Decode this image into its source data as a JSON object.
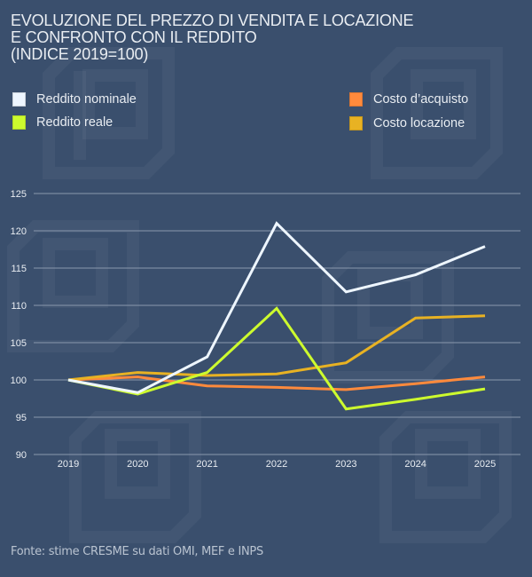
{
  "title_lines": [
    "EVOLUZIONE DEL PREZZO DI VENDITA E LOCAZIONE",
    "E CONFRONTO CON IL REDDITO",
    "(INDICE 2019=100)"
  ],
  "legend": [
    {
      "label": "Reddito nominale",
      "color": "#eef6ff"
    },
    {
      "label": "Reddito reale",
      "color": "#cdfb2e"
    },
    {
      "label": "Costo d’acquisto",
      "color": "#ff8a3c"
    },
    {
      "label": "Costo locazione",
      "color": "#e8b223"
    }
  ],
  "source": "Fonte: stime CRESME su dati OMI, MEF e INPS",
  "chart_data": {
    "type": "line",
    "title": "EVOLUZIONE DEL PREZZO DI VENDITA E LOCAZIONE E CONFRONTO CON IL REDDITO (INDICE 2019=100)",
    "xlabel": "",
    "ylabel": "",
    "x": [
      "2019",
      "2020",
      "2021",
      "2022",
      "2023",
      "2024",
      "2025"
    ],
    "ylim": [
      90,
      125
    ],
    "yticks": [
      "125",
      "120",
      "115",
      "110",
      "105",
      "100",
      "95",
      "90"
    ],
    "grid": true,
    "legend_position": "top",
    "series": [
      {
        "name": "Reddito nominale",
        "color": "#eef6ff",
        "values": [
          100,
          98.3,
          103.1,
          121.0,
          111.8,
          114.1,
          117.9
        ]
      },
      {
        "name": "Reddito reale",
        "color": "#cdfb2e",
        "values": [
          100,
          98.1,
          101.0,
          109.6,
          96.1,
          97.4,
          98.8
        ]
      },
      {
        "name": "Costo d’acquisto",
        "color": "#ff8a3c",
        "values": [
          100,
          100.4,
          99.2,
          99.0,
          98.7,
          99.5,
          100.4
        ]
      },
      {
        "name": "Costo locazione",
        "color": "#e8b223",
        "values": [
          100,
          101.0,
          100.6,
          100.8,
          102.3,
          108.3,
          108.6
        ]
      }
    ]
  }
}
